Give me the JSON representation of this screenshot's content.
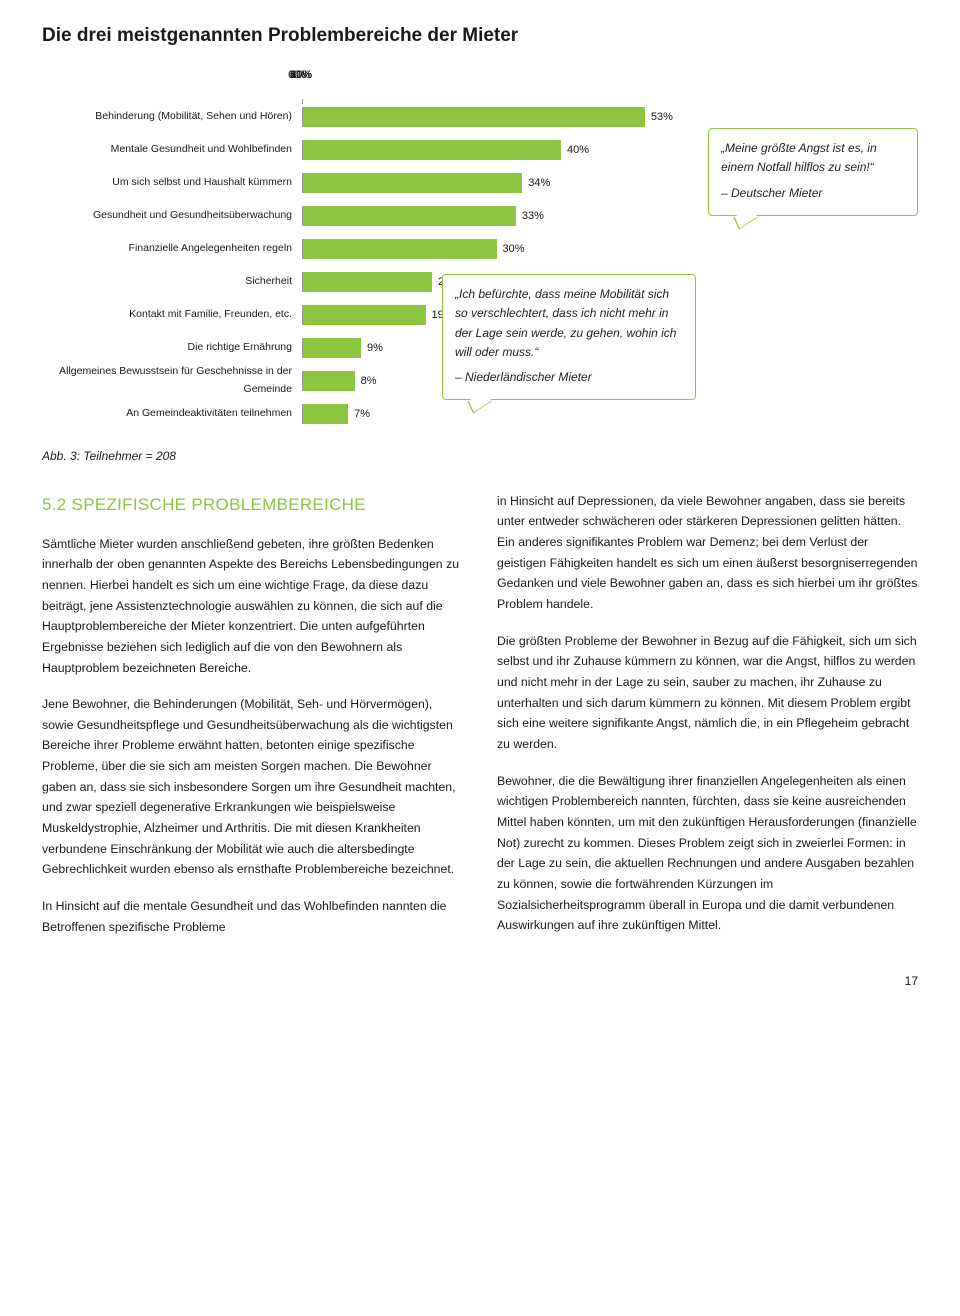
{
  "chart": {
    "title": "Die drei meistgenannten Problembereiche der Mieter",
    "xmax": 60,
    "ticks": [
      "0%",
      "10%",
      "20%",
      "30%",
      "40%",
      "50%",
      "60%"
    ],
    "bar_color": "#8cc63f",
    "rows": [
      {
        "label": "Behinderung (Mobilität, Sehen und Hören)",
        "value": 53,
        "text": "53%"
      },
      {
        "label": "Mentale Gesundheit und Wohlbefinden",
        "value": 40,
        "text": "40%"
      },
      {
        "label": "Um sich selbst und Haushalt kümmern",
        "value": 34,
        "text": "34%"
      },
      {
        "label": "Gesundheit und Gesundheitsüberwachung",
        "value": 33,
        "text": "33%"
      },
      {
        "label": "Finanzielle Angelegenheiten regeln",
        "value": 30,
        "text": "30%"
      },
      {
        "label": "Sicherheit",
        "value": 20,
        "text": "20%"
      },
      {
        "label": "Kontakt mit Familie, Freunden, etc.",
        "value": 19,
        "text": "19%"
      },
      {
        "label": "Die richtige Ernährung",
        "value": 9,
        "text": "9%"
      },
      {
        "label": "Allgemeines Bewusstsein für Geschehnisse in der Gemeinde",
        "value": 8,
        "text": "8%"
      },
      {
        "label": "An Gemeindeaktivitäten teilnehmen",
        "value": 7,
        "text": "7%"
      }
    ]
  },
  "quote1": {
    "text": "„Meine größte Angst ist es, in einem Notfall hilflos zu sein!“",
    "attr": "– Deutscher Mieter"
  },
  "quote2": {
    "text": "„Ich befürchte, dass meine Mobilität sich so verschlechtert, dass ich nicht mehr in der Lage sein werde, zu gehen, wohin ich will oder muss.“",
    "attr": "– Niederländischer Mieter"
  },
  "caption": "Abb. 3: Teilnehmer = 208",
  "heading": "5.2 SPEZIFISCHE PROBLEMBEREICHE",
  "left_paras": [
    "Sämtliche Mieter wurden anschließend gebeten, ihre größten Bedenken innerhalb der oben genannten Aspekte des Bereichs Lebensbedingungen zu nennen. Hierbei handelt es sich um eine wichtige Frage, da diese dazu beiträgt, jene Assistenztechnologie auswählen zu können, die sich auf die Hauptproblembereiche der Mieter konzentriert. Die unten aufgeführten Ergebnisse beziehen sich lediglich auf die von den Bewohnern als Hauptproblem bezeichneten Bereiche.",
    "Jene Bewohner, die Behinderungen (Mobilität, Seh- und Hörvermögen), sowie Gesundheitspflege und Gesundheits­überwachung als die wichtigsten Bereiche ihrer Probleme erwähnt hatten, betonten einige spezifische Probleme, über die sie sich am meisten Sorgen machen. Die Bewohner gaben an, dass sie sich insbesondere Sorgen um ihre Gesundheit machten, und zwar speziell degenerative Erkrankungen wie beispielsweise Muskeldystrophie, Alz­heimer und Arthritis. Die mit diesen Krankheiten verbundene Einschränkung der Mobilität wie auch die altersbedingte Gebrechlichkeit wurden ebenso als ernsthafte Problem­bereiche bezeichnet.",
    "In Hinsicht auf die mentale Gesundheit und das Wohl­befinden nannten die Betroffenen spezifische Probleme"
  ],
  "right_paras": [
    "in Hinsicht auf Depressionen, da viele Bewohner angaben, dass sie bereits unter entweder schwächeren oder stärkeren Depressionen gelitten hätten. Ein anderes signifikantes Problem war Demenz; bei dem Verlust der geistigen Fähigkeiten handelt es sich um einen äußerst besorgnis­erregenden Gedanken und viele Bewohner gaben an, dass es sich hierbei um ihr größtes Problem handele.",
    "Die größten Probleme der Bewohner in Bezug auf die Fähigkeit, sich um sich selbst und ihr Zuhause kümmern zu können, war die Angst, hilflos zu werden und nicht mehr in der Lage zu sein, sauber zu machen, ihr Zuhause zu unterhalten und sich darum kümmern zu können. Mit diesem Problem ergibt sich eine weitere signifikante Angst, nämlich die, in ein Pflegeheim gebracht zu werden.",
    "Bewohner, die die Bewältigung ihrer finanziellen Angelegen­heiten als einen wichtigen Problembereich nannten, fürchten, dass sie keine ausreichenden Mittel haben könnten, um mit den zukünftigen Herausforderungen (finanzielle Not) zurecht zu kommen. Dieses Problem zeigt sich in zweierlei Formen: in der Lage zu sein, die aktuellen Rechnungen und andere Ausgaben bezahlen zu können, sowie die fortwährenden Kürzungen im Sozialsicherheitsprogramm überall in Europa und die damit verbundenen Auswirkungen auf ihre zukünfti­gen Mittel."
  ],
  "page_num": "17"
}
